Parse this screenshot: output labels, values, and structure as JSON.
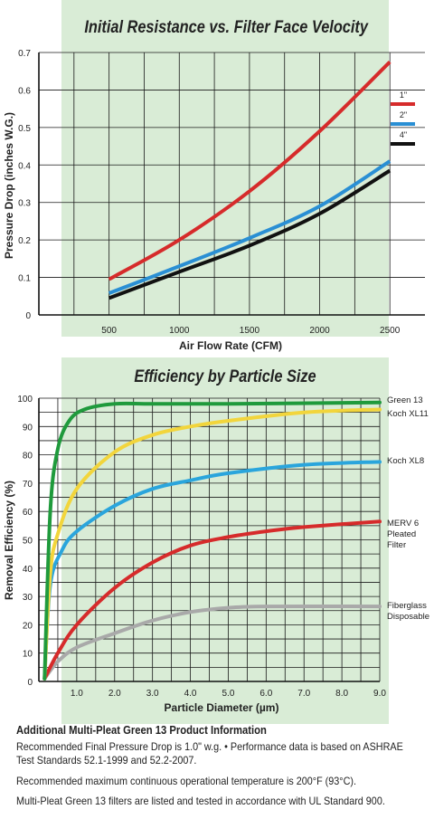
{
  "chart_data": [
    {
      "type": "line",
      "title": "Initial Resistance vs. Filter Face Velocity",
      "xlabel": "Air Flow Rate (CFM)",
      "ylabel": "Pressure Drop (inches W.G.)",
      "xlim": [
        0,
        2750
      ],
      "ylim": [
        0,
        0.7
      ],
      "xticks": [
        500,
        1000,
        1500,
        2000,
        2500
      ],
      "yticks": [
        0,
        0.1,
        0.2,
        0.3,
        0.4,
        0.5,
        0.6,
        0.7
      ],
      "grid": true,
      "legend_position": "right",
      "series": [
        {
          "name": "1\"",
          "color": "#d62b2b",
          "x": [
            500,
            1000,
            1500,
            2000,
            2500
          ],
          "y": [
            0.095,
            0.2,
            0.33,
            0.49,
            0.675
          ]
        },
        {
          "name": "2\"",
          "color": "#2a8fd4",
          "x": [
            500,
            1000,
            1500,
            2000,
            2500
          ],
          "y": [
            0.058,
            0.13,
            0.205,
            0.29,
            0.41
          ]
        },
        {
          "name": "4\"",
          "color": "#111111",
          "x": [
            500,
            1000,
            1500,
            2000,
            2500
          ],
          "y": [
            0.045,
            0.115,
            0.185,
            0.27,
            0.385
          ]
        }
      ]
    },
    {
      "type": "line",
      "title": "Efficiency by Particle Size",
      "xlabel": "Particle Diameter (µm)",
      "ylabel": "Removal Efficiency (%)",
      "xlim": [
        0,
        9
      ],
      "ylim": [
        0,
        100
      ],
      "xticks": [
        "1.0",
        "2.0",
        "3.0",
        "4.0",
        "5.0",
        "6.0",
        "7.0",
        "8.0",
        "9.0"
      ],
      "yticks": [
        0,
        10,
        20,
        30,
        40,
        50,
        60,
        70,
        80,
        90,
        100
      ],
      "grid": true,
      "legend_position": "right",
      "series": [
        {
          "name": "Green 13",
          "color": "#1f9a3c",
          "x": [
            0.15,
            0.3,
            0.5,
            0.8,
            1.2,
            2.0,
            3.0,
            5.0,
            9.0
          ],
          "y": [
            1,
            60,
            82,
            92,
            96,
            98,
            98,
            98,
            98.5
          ]
        },
        {
          "name": "Koch XL11",
          "color": "#f2d53c",
          "x": [
            0.15,
            0.3,
            0.5,
            1.0,
            2.0,
            3.0,
            4.0,
            5.0,
            7.0,
            9.0
          ],
          "y": [
            1,
            38,
            52,
            68,
            81,
            87,
            90,
            92,
            95,
            96
          ]
        },
        {
          "name": "Koch XL8",
          "color": "#2aa5dc",
          "x": [
            0.15,
            0.3,
            0.6,
            1.0,
            2.0,
            3.0,
            4.0,
            5.0,
            7.0,
            9.0
          ],
          "y": [
            1,
            34,
            46,
            53,
            62,
            68,
            71,
            73.5,
            76.5,
            77.5
          ]
        },
        {
          "name": "MERV 6 Pleated Filter",
          "color": "#d62b2b",
          "x": [
            0.15,
            0.5,
            1.0,
            2.0,
            3.0,
            4.0,
            5.0,
            6.0,
            7.0,
            9.0
          ],
          "y": [
            1,
            10,
            20,
            33,
            42,
            48,
            51,
            53,
            54.5,
            56.5
          ]
        },
        {
          "name": "Fiberglass Disposable",
          "color": "#a9a9a9",
          "x": [
            0.15,
            0.5,
            1.0,
            2.0,
            3.0,
            4.0,
            5.0,
            6.0,
            9.0
          ],
          "y": [
            1,
            7,
            12,
            17,
            21.5,
            24.5,
            26,
            26.5,
            26.5
          ]
        }
      ]
    }
  ],
  "info": {
    "heading": "Additional Multi-Pleat Green 13 Product Information",
    "line1": "Recommended Final Pressure Drop is 1.0\" w.g. •  Performance data is based on ASHRAE Test Standards 52.1-1999 and 52.2-2007.",
    "line2": "Recommended maximum continuous operational temperature is 200°F (93°C).",
    "line3": "Multi-Pleat Green 13 filters are listed and tested in accordance with UL Standard 900."
  }
}
